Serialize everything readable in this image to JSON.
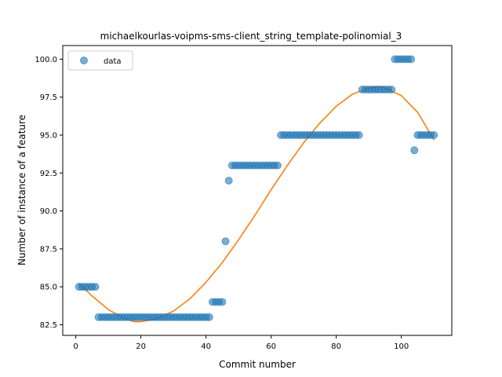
{
  "chart_data": {
    "type": "scatter",
    "title": "michaelkourlas-voipms-sms-client_string_template-polinomial_3",
    "xlabel": "Commit number",
    "ylabel": "Number of instance of a feature",
    "xlim": [
      -4,
      115.5
    ],
    "ylim": [
      81.8,
      100.9
    ],
    "xticks": [
      0,
      20,
      40,
      60,
      80,
      100
    ],
    "yticks": [
      82.5,
      85.0,
      87.5,
      90.0,
      92.5,
      95.0,
      97.5,
      100.0
    ],
    "ytick_labels": [
      "82.5",
      "85.0",
      "87.5",
      "90.0",
      "92.5",
      "95.0",
      "97.5",
      "100.0"
    ],
    "legend": {
      "position": "top-left",
      "entries": [
        "data"
      ]
    },
    "colors": {
      "data": "#1f77b4",
      "fit": "#ff7f0e"
    },
    "series": [
      {
        "name": "data",
        "kind": "scatter",
        "points": [
          [
            1,
            85
          ],
          [
            2,
            85
          ],
          [
            3,
            85
          ],
          [
            4,
            85
          ],
          [
            5,
            85
          ],
          [
            6,
            85
          ],
          [
            7,
            83
          ],
          [
            8,
            83
          ],
          [
            9,
            83
          ],
          [
            10,
            83
          ],
          [
            11,
            83
          ],
          [
            12,
            83
          ],
          [
            13,
            83
          ],
          [
            14,
            83
          ],
          [
            15,
            83
          ],
          [
            16,
            83
          ],
          [
            17,
            83
          ],
          [
            18,
            83
          ],
          [
            19,
            83
          ],
          [
            20,
            83
          ],
          [
            21,
            83
          ],
          [
            22,
            83
          ],
          [
            23,
            83
          ],
          [
            24,
            83
          ],
          [
            25,
            83
          ],
          [
            26,
            83
          ],
          [
            27,
            83
          ],
          [
            28,
            83
          ],
          [
            29,
            83
          ],
          [
            30,
            83
          ],
          [
            31,
            83
          ],
          [
            32,
            83
          ],
          [
            33,
            83
          ],
          [
            34,
            83
          ],
          [
            35,
            83
          ],
          [
            36,
            83
          ],
          [
            37,
            83
          ],
          [
            38,
            83
          ],
          [
            39,
            83
          ],
          [
            40,
            83
          ],
          [
            41,
            83
          ],
          [
            42,
            84
          ],
          [
            43,
            84
          ],
          [
            44,
            84
          ],
          [
            45,
            84
          ],
          [
            46,
            88
          ],
          [
            47,
            92
          ],
          [
            48,
            93
          ],
          [
            49,
            93
          ],
          [
            50,
            93
          ],
          [
            51,
            93
          ],
          [
            52,
            93
          ],
          [
            53,
            93
          ],
          [
            54,
            93
          ],
          [
            55,
            93
          ],
          [
            56,
            93
          ],
          [
            57,
            93
          ],
          [
            58,
            93
          ],
          [
            59,
            93
          ],
          [
            60,
            93
          ],
          [
            61,
            93
          ],
          [
            62,
            93
          ],
          [
            63,
            95
          ],
          [
            64,
            95
          ],
          [
            65,
            95
          ],
          [
            66,
            95
          ],
          [
            67,
            95
          ],
          [
            68,
            95
          ],
          [
            69,
            95
          ],
          [
            70,
            95
          ],
          [
            71,
            95
          ],
          [
            72,
            95
          ],
          [
            73,
            95
          ],
          [
            74,
            95
          ],
          [
            75,
            95
          ],
          [
            76,
            95
          ],
          [
            77,
            95
          ],
          [
            78,
            95
          ],
          [
            79,
            95
          ],
          [
            80,
            95
          ],
          [
            81,
            95
          ],
          [
            82,
            95
          ],
          [
            83,
            95
          ],
          [
            84,
            95
          ],
          [
            85,
            95
          ],
          [
            86,
            95
          ],
          [
            87,
            95
          ],
          [
            88,
            98
          ],
          [
            89,
            98
          ],
          [
            90,
            98
          ],
          [
            91,
            98
          ],
          [
            92,
            98
          ],
          [
            93,
            98
          ],
          [
            94,
            98
          ],
          [
            95,
            98
          ],
          [
            96,
            98
          ],
          [
            97,
            98
          ],
          [
            98,
            100
          ],
          [
            99,
            100
          ],
          [
            100,
            100
          ],
          [
            101,
            100
          ],
          [
            102,
            100
          ],
          [
            103,
            100
          ],
          [
            104,
            94
          ],
          [
            105,
            95
          ],
          [
            106,
            95
          ],
          [
            107,
            95
          ],
          [
            108,
            95
          ],
          [
            109,
            95
          ],
          [
            110,
            95
          ]
        ]
      },
      {
        "name": "",
        "kind": "line",
        "points": [
          [
            1,
            85.2
          ],
          [
            5,
            84.4
          ],
          [
            10,
            83.5
          ],
          [
            15,
            82.9
          ],
          [
            18,
            82.7
          ],
          [
            20,
            82.7
          ],
          [
            25,
            82.9
          ],
          [
            30,
            83.4
          ],
          [
            35,
            84.2
          ],
          [
            40,
            85.3
          ],
          [
            45,
            86.6
          ],
          [
            50,
            88.1
          ],
          [
            55,
            89.7
          ],
          [
            60,
            91.4
          ],
          [
            65,
            93.0
          ],
          [
            70,
            94.5
          ],
          [
            75,
            95.8
          ],
          [
            80,
            96.9
          ],
          [
            85,
            97.7
          ],
          [
            90,
            98.1
          ],
          [
            93,
            98.2
          ],
          [
            95,
            98.1
          ],
          [
            100,
            97.6
          ],
          [
            105,
            96.5
          ],
          [
            110,
            94.7
          ]
        ]
      }
    ]
  }
}
